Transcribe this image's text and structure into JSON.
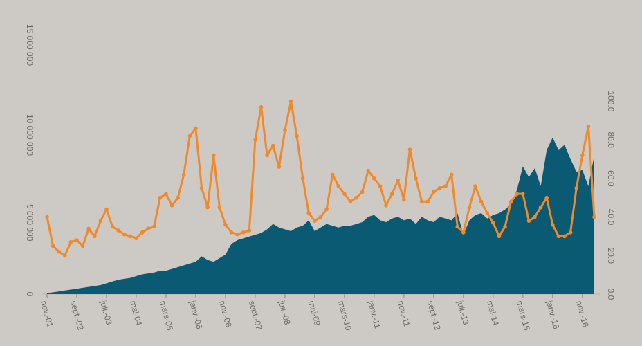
{
  "chart_data": {
    "type": "area-line",
    "categories": [
      "nov.-01",
      null,
      null,
      null,
      null,
      "sept.-02",
      null,
      null,
      null,
      null,
      "juil.-03",
      null,
      null,
      null,
      null,
      "mai-04",
      null,
      null,
      null,
      null,
      "mars-05",
      null,
      null,
      null,
      null,
      "janv.-06",
      null,
      null,
      null,
      null,
      "nov.-06",
      null,
      null,
      null,
      null,
      "sept.-07",
      null,
      null,
      null,
      null,
      "juil.-08",
      null,
      null,
      null,
      null,
      "mai-09",
      null,
      null,
      null,
      null,
      "mars-10",
      null,
      null,
      null,
      null,
      "janv.-11",
      null,
      null,
      null,
      null,
      "nov.-11",
      null,
      null,
      null,
      null,
      "sept.-12",
      null,
      null,
      null,
      null,
      "juil.-13",
      null,
      null,
      null,
      null,
      "mai-14",
      null,
      null,
      null,
      null,
      "mars-15",
      null,
      null,
      null,
      null,
      "janv.-16",
      null,
      null,
      null,
      null,
      "nov.-16",
      null,
      null
    ],
    "series": [
      {
        "color": "#0b5a73",
        "axis": "y",
        "kind": "area",
        "values": [
          50000,
          100000,
          150000,
          200000,
          250000,
          300000,
          350000,
          400000,
          450000,
          500000,
          600000,
          700000,
          800000,
          850000,
          900000,
          1000000,
          1100000,
          1150000,
          1200000,
          1300000,
          1300000,
          1400000,
          1500000,
          1600000,
          1700000,
          1800000,
          2100000,
          1900000,
          1800000,
          2000000,
          2200000,
          2800000,
          3000000,
          3100000,
          3200000,
          3300000,
          3400000,
          3600000,
          3900000,
          3700000,
          3600000,
          3500000,
          3700000,
          3800000,
          4100000,
          3500000,
          3700000,
          3900000,
          3800000,
          3700000,
          3800000,
          3800000,
          3900000,
          4000000,
          4300000,
          4400000,
          4100000,
          4000000,
          4200000,
          4300000,
          4100000,
          4200000,
          3900000,
          4300000,
          4100000,
          4000000,
          4300000,
          4200000,
          4100000,
          4500000,
          3300000,
          4100000,
          4400000,
          4500000,
          4200000,
          4400000,
          4500000,
          4700000,
          5000000,
          5800000,
          7100000,
          6500000,
          7000000,
          6000000,
          8000000,
          8700000,
          8000000,
          8300000,
          7500000,
          6800000,
          6900000,
          6000000,
          7700000
        ]
      },
      {
        "color": "#f0892b",
        "axis": "y2",
        "kind": "line",
        "values": [
          40,
          25,
          22,
          20,
          27,
          28,
          25,
          34,
          30,
          38,
          44,
          35,
          33,
          31,
          30,
          29,
          32,
          34,
          35,
          50,
          52,
          46,
          50,
          62,
          82,
          86,
          55,
          45,
          72,
          45,
          36,
          32,
          31,
          32,
          33,
          80,
          97,
          72,
          77,
          66,
          85,
          100,
          82,
          60,
          42,
          38,
          40,
          44,
          62,
          56,
          52,
          48,
          50,
          53,
          64,
          60,
          56,
          46,
          52,
          59,
          49,
          75,
          60,
          48,
          48,
          53,
          55,
          56,
          62,
          35,
          32,
          45,
          56,
          48,
          42,
          37,
          30,
          35,
          48,
          52,
          52,
          38,
          40,
          45,
          50,
          36,
          30,
          30,
          32,
          55,
          72,
          87,
          40
        ]
      }
    ],
    "ylim": [
      0,
      15000000
    ],
    "yticks": [
      0,
      {
        "value": 5000000,
        "label": "5 000 000"
      },
      {
        "value": 10000000,
        "label": "10 000 000"
      },
      {
        "value": 15000000,
        "label": "15 000 000"
      }
    ],
    "y2lim": [
      0,
      140
    ],
    "y2ticks": [
      {
        "value": 0,
        "label": "0.0"
      },
      {
        "value": 20,
        "label": "20.0"
      },
      {
        "value": 40,
        "label": "40.0"
      },
      {
        "value": 60,
        "label": "60.0"
      },
      {
        "value": 80,
        "label": "80.0"
      },
      {
        "value": 100,
        "label": "100.0"
      }
    ],
    "grid": false
  }
}
